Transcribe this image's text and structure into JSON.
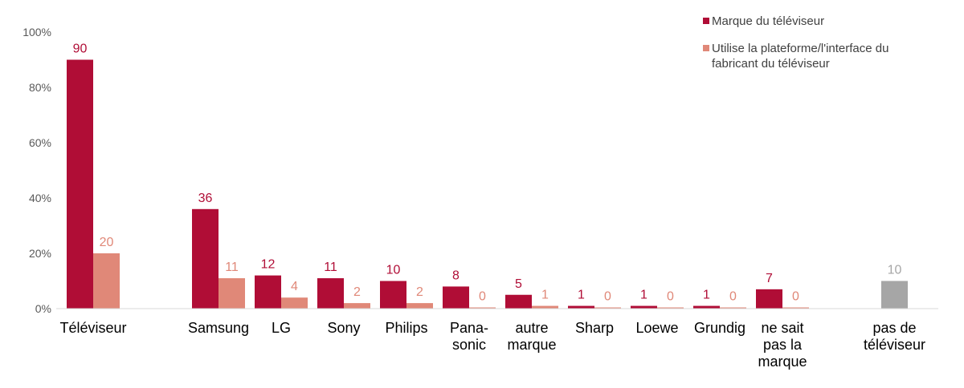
{
  "chart_data": {
    "type": "bar",
    "ylim": [
      0,
      100
    ],
    "yticks": [
      "0%",
      "20%",
      "40%",
      "60%",
      "80%",
      "100%"
    ],
    "legend_position": "top-right",
    "categories": [
      {
        "label": [
          "Téléviseur"
        ],
        "values": [
          90,
          20
        ]
      },
      {
        "label": [
          "Samsung"
        ],
        "values": [
          36,
          11
        ]
      },
      {
        "label": [
          "LG"
        ],
        "values": [
          12,
          4
        ]
      },
      {
        "label": [
          "Sony"
        ],
        "values": [
          11,
          2
        ]
      },
      {
        "label": [
          "Philips"
        ],
        "values": [
          10,
          2
        ]
      },
      {
        "label": [
          "Pana-",
          "sonic"
        ],
        "values": [
          8,
          0
        ]
      },
      {
        "label": [
          "autre",
          "marque"
        ],
        "values": [
          5,
          1
        ]
      },
      {
        "label": [
          "Sharp"
        ],
        "values": [
          1,
          0
        ]
      },
      {
        "label": [
          "Loewe"
        ],
        "values": [
          1,
          0
        ]
      },
      {
        "label": [
          "Grundig"
        ],
        "values": [
          1,
          0
        ]
      },
      {
        "label": [
          "ne sait",
          "pas la",
          "marque"
        ],
        "values": [
          7,
          0
        ]
      }
    ],
    "extra_bar": {
      "label": [
        "pas de",
        "téléviseur"
      ],
      "value": 10
    },
    "series": [
      {
        "name": "Marque du téléviseur",
        "color": "#b00d36"
      },
      {
        "name": "Utilise la plateforme/l'interface du fabricant du téléviseur",
        "color": "#e08878"
      }
    ],
    "extra_bar_color": "#a6a6a6",
    "label_colors": [
      "#b00d36",
      "#e08878",
      "#a6a6a6"
    ]
  },
  "legend": {
    "item1": "Marque du téléviseur",
    "item2_line1": "Utilise la plateforme/l'interface du",
    "item2_line2": "fabricant du téléviseur"
  }
}
